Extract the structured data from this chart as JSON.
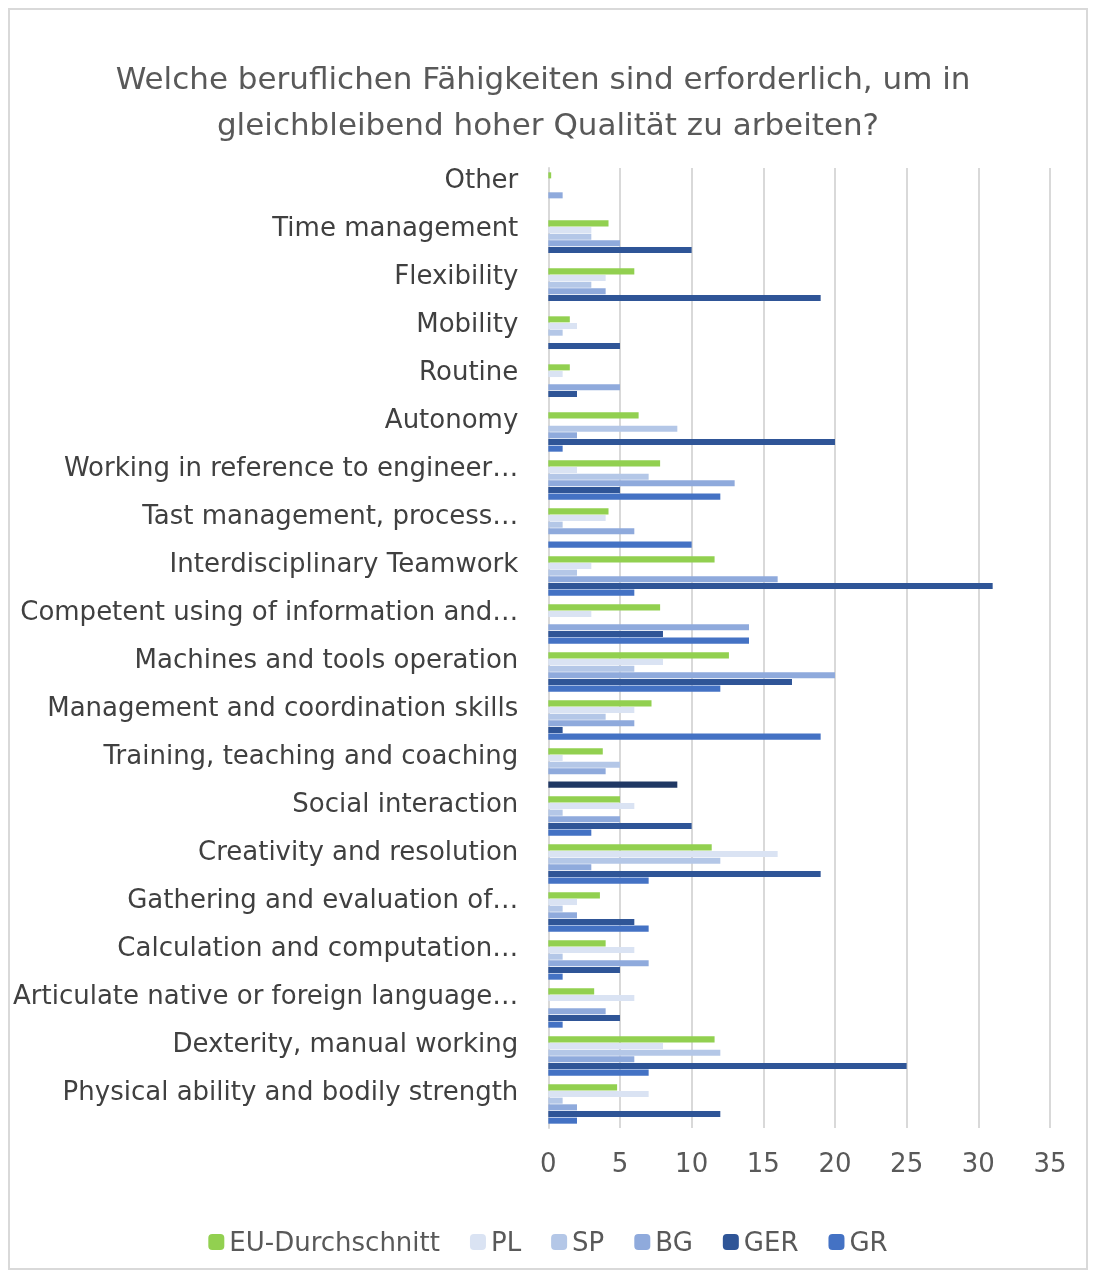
{
  "chart_data": {
    "type": "bar",
    "orientation": "horizontal",
    "title": "Welche beruflichen Fähigkeiten sind erforderlich, um in gleichbleibend hoher Qualität zu arbeiten?",
    "categories": [
      "Other",
      "Time management",
      "Flexibility",
      "Mobility",
      "Routine",
      "Autonomy",
      "Working in reference to engineer…",
      "Tast management, process…",
      "Interdisciplinary Teamwork",
      "Competent using of information and…",
      "Machines and tools operation",
      "Management and coordination skills",
      "Training, teaching and coaching",
      "Social interaction",
      "Creativity and resolution",
      "Gathering and evaluation of…",
      "Calculation and computation…",
      "Articulate native or foreign language…",
      "Dexterity, manual working",
      "Physical ability and bodily strength"
    ],
    "series": [
      {
        "name": "EU-Durchschnitt",
        "color": "#92d050",
        "values": [
          0.2,
          4.2,
          6,
          1.5,
          1.5,
          6.3,
          7.8,
          4.2,
          11.6,
          7.8,
          12.6,
          7.2,
          3.8,
          5,
          11.4,
          3.6,
          4,
          3.2,
          11.6,
          4.8
        ]
      },
      {
        "name": "PL",
        "color": "#dae3f3",
        "values": [
          0,
          3,
          4,
          2,
          1,
          0,
          2,
          4,
          3,
          3,
          8,
          6,
          1,
          6,
          16,
          2,
          6,
          6,
          8,
          7
        ]
      },
      {
        "name": "SP",
        "color": "#b4c7e7",
        "values": [
          0,
          3,
          3,
          1,
          0,
          9,
          7,
          1,
          2,
          0,
          6,
          4,
          5,
          1,
          12,
          1,
          1,
          0,
          12,
          1
        ]
      },
      {
        "name": "BG",
        "color": "#8faadc",
        "values": [
          1,
          5,
          4,
          0,
          5,
          2,
          13,
          6,
          16,
          14,
          20,
          6,
          4,
          5,
          3,
          2,
          7,
          4,
          6,
          2
        ]
      },
      {
        "name": "GER",
        "color": "#2f5597",
        "values": [
          0,
          10,
          19,
          5,
          2,
          20,
          5,
          0,
          31,
          8,
          17,
          1,
          0,
          10,
          19,
          6,
          5,
          5,
          25,
          12
        ]
      },
      {
        "name": "GR",
        "color": "#4472c4",
        "values": [
          0,
          0,
          0,
          0,
          0,
          1,
          12,
          10,
          6,
          14,
          12,
          19,
          9,
          3,
          7,
          7,
          1,
          1,
          7,
          2
        ],
        "colors": [
          "#4472c4",
          "#4472c4",
          "#4472c4",
          "#4472c4",
          "#4472c4",
          "#4472c4",
          "#4472c4",
          "#4472c4",
          "#4472c4",
          "#4472c4",
          "#4472c4",
          "#4472c4",
          "#203864",
          "#4472c4",
          "#4472c4",
          "#4472c4",
          "#4472c4",
          "#4472c4",
          "#4472c4",
          "#4472c4"
        ]
      }
    ],
    "xlim": [
      0,
      35
    ],
    "xticks": [
      0,
      5,
      10,
      15,
      20,
      25,
      30,
      35
    ],
    "grid": "x",
    "legend": "bottom"
  }
}
